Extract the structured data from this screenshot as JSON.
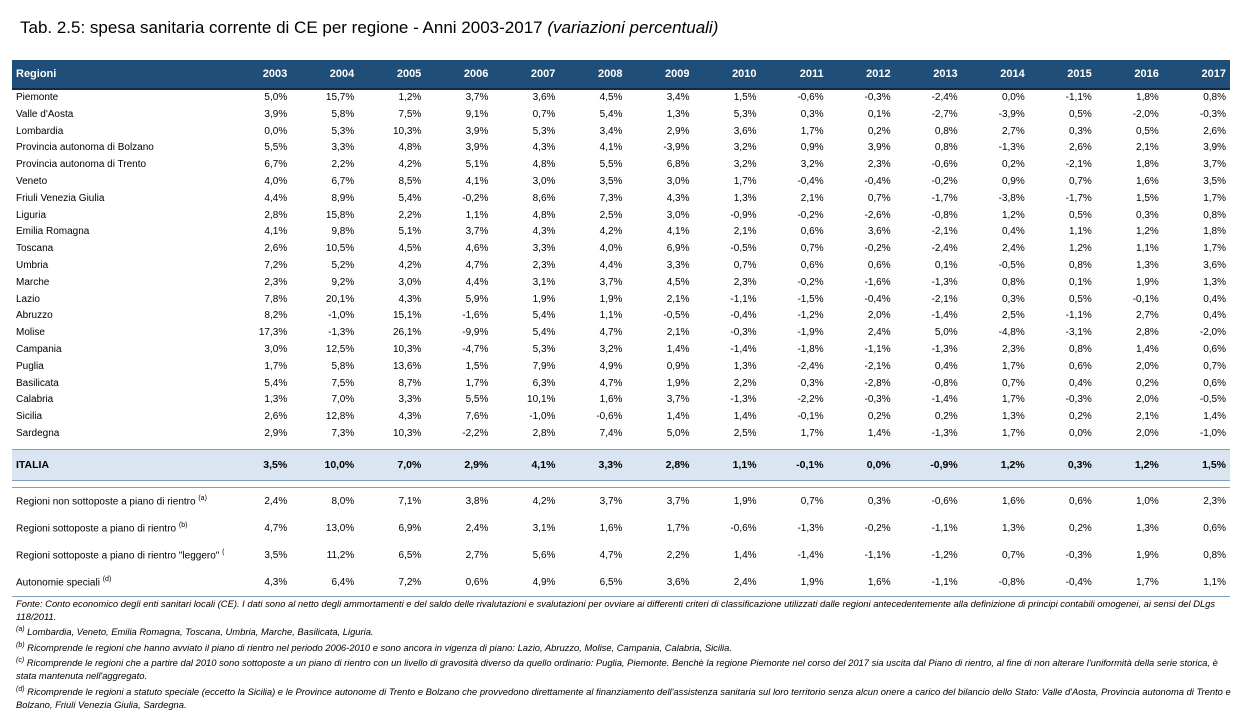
{
  "title": {
    "main": "Tab. 2.5: spesa sanitaria corrente di CE  per regione - Anni 2003-2017",
    "sub": "(variazioni percentuali)"
  },
  "table": {
    "header": [
      "Regioni",
      "2003",
      "2004",
      "2005",
      "2006",
      "2007",
      "2008",
      "2009",
      "2010",
      "2011",
      "2012",
      "2013",
      "2014",
      "2015",
      "2016",
      "2017"
    ],
    "rows": [
      [
        "Piemonte",
        "5,0%",
        "15,7%",
        "1,2%",
        "3,7%",
        "3,6%",
        "4,5%",
        "3,4%",
        "1,5%",
        "-0,6%",
        "-0,3%",
        "-2,4%",
        "0,0%",
        "-1,1%",
        "1,8%",
        "0,8%"
      ],
      [
        "Valle d'Aosta",
        "3,9%",
        "5,8%",
        "7,5%",
        "9,1%",
        "0,7%",
        "5,4%",
        "1,3%",
        "5,3%",
        "0,3%",
        "0,1%",
        "-2,7%",
        "-3,9%",
        "0,5%",
        "-2,0%",
        "-0,3%"
      ],
      [
        "Lombardia",
        "0,0%",
        "5,3%",
        "10,3%",
        "3,9%",
        "5,3%",
        "3,4%",
        "2,9%",
        "3,6%",
        "1,7%",
        "0,2%",
        "0,8%",
        "2,7%",
        "0,3%",
        "0,5%",
        "2,6%"
      ],
      [
        "Provincia autonoma di Bolzano",
        "5,5%",
        "3,3%",
        "4,8%",
        "3,9%",
        "4,3%",
        "4,1%",
        "-3,9%",
        "3,2%",
        "0,9%",
        "3,9%",
        "0,8%",
        "-1,3%",
        "2,6%",
        "2,1%",
        "3,9%"
      ],
      [
        "Provincia autonoma di Trento",
        "6,7%",
        "2,2%",
        "4,2%",
        "5,1%",
        "4,8%",
        "5,5%",
        "6,8%",
        "3,2%",
        "3,2%",
        "2,3%",
        "-0,6%",
        "0,2%",
        "-2,1%",
        "1,8%",
        "3,7%"
      ],
      [
        "Veneto",
        "4,0%",
        "6,7%",
        "8,5%",
        "4,1%",
        "3,0%",
        "3,5%",
        "3,0%",
        "1,7%",
        "-0,4%",
        "-0,4%",
        "-0,2%",
        "0,9%",
        "0,7%",
        "1,6%",
        "3,5%"
      ],
      [
        "Friuli Venezia Giulia",
        "4,4%",
        "8,9%",
        "5,4%",
        "-0,2%",
        "8,6%",
        "7,3%",
        "4,3%",
        "1,3%",
        "2,1%",
        "0,7%",
        "-1,7%",
        "-3,8%",
        "-1,7%",
        "1,5%",
        "1,7%"
      ],
      [
        "Liguria",
        "2,8%",
        "15,8%",
        "2,2%",
        "1,1%",
        "4,8%",
        "2,5%",
        "3,0%",
        "-0,9%",
        "-0,2%",
        "-2,6%",
        "-0,8%",
        "1,2%",
        "0,5%",
        "0,3%",
        "0,8%"
      ],
      [
        "Emilia Romagna",
        "4,1%",
        "9,8%",
        "5,1%",
        "3,7%",
        "4,3%",
        "4,2%",
        "4,1%",
        "2,1%",
        "0,6%",
        "3,6%",
        "-2,1%",
        "0,4%",
        "1,1%",
        "1,2%",
        "1,8%"
      ],
      [
        "Toscana",
        "2,6%",
        "10,5%",
        "4,5%",
        "4,6%",
        "3,3%",
        "4,0%",
        "6,9%",
        "-0,5%",
        "0,7%",
        "-0,2%",
        "-2,4%",
        "2,4%",
        "1,2%",
        "1,1%",
        "1,7%"
      ],
      [
        "Umbria",
        "7,2%",
        "5,2%",
        "4,2%",
        "4,7%",
        "2,3%",
        "4,4%",
        "3,3%",
        "0,7%",
        "0,6%",
        "0,6%",
        "0,1%",
        "-0,5%",
        "0,8%",
        "1,3%",
        "3,6%"
      ],
      [
        "Marche",
        "2,3%",
        "9,2%",
        "3,0%",
        "4,4%",
        "3,1%",
        "3,7%",
        "4,5%",
        "2,3%",
        "-0,2%",
        "-1,6%",
        "-1,3%",
        "0,8%",
        "0,1%",
        "1,9%",
        "1,3%"
      ],
      [
        "Lazio",
        "7,8%",
        "20,1%",
        "4,3%",
        "5,9%",
        "1,9%",
        "1,9%",
        "2,1%",
        "-1,1%",
        "-1,5%",
        "-0,4%",
        "-2,1%",
        "0,3%",
        "0,5%",
        "-0,1%",
        "0,4%"
      ],
      [
        "Abruzzo",
        "8,2%",
        "-1,0%",
        "15,1%",
        "-1,6%",
        "5,4%",
        "1,1%",
        "-0,5%",
        "-0,4%",
        "-1,2%",
        "2,0%",
        "-1,4%",
        "2,5%",
        "-1,1%",
        "2,7%",
        "0,4%"
      ],
      [
        "Molise",
        "17,3%",
        "-1,3%",
        "26,1%",
        "-9,9%",
        "5,4%",
        "4,7%",
        "2,1%",
        "-0,3%",
        "-1,9%",
        "2,4%",
        "5,0%",
        "-4,8%",
        "-3,1%",
        "2,8%",
        "-2,0%"
      ],
      [
        "Campania",
        "3,0%",
        "12,5%",
        "10,3%",
        "-4,7%",
        "5,3%",
        "3,2%",
        "1,4%",
        "-1,4%",
        "-1,8%",
        "-1,1%",
        "-1,3%",
        "2,3%",
        "0,8%",
        "1,4%",
        "0,6%"
      ],
      [
        "Puglia",
        "1,7%",
        "5,8%",
        "13,6%",
        "1,5%",
        "7,9%",
        "4,9%",
        "0,9%",
        "1,3%",
        "-2,4%",
        "-2,1%",
        "0,4%",
        "1,7%",
        "0,6%",
        "2,0%",
        "0,7%"
      ],
      [
        "Basilicata",
        "5,4%",
        "7,5%",
        "8,7%",
        "1,7%",
        "6,3%",
        "4,7%",
        "1,9%",
        "2,2%",
        "0,3%",
        "-2,8%",
        "-0,8%",
        "0,7%",
        "0,4%",
        "0,2%",
        "0,6%"
      ],
      [
        "Calabria",
        "1,3%",
        "7,0%",
        "3,3%",
        "5,5%",
        "10,1%",
        "1,6%",
        "3,7%",
        "-1,3%",
        "-2,2%",
        "-0,3%",
        "-1,4%",
        "1,7%",
        "-0,3%",
        "2,0%",
        "-0,5%"
      ],
      [
        "Sicilia",
        "2,6%",
        "12,8%",
        "4,3%",
        "7,6%",
        "-1,0%",
        "-0,6%",
        "1,4%",
        "1,4%",
        "-0,1%",
        "0,2%",
        "0,2%",
        "1,3%",
        "0,2%",
        "2,1%",
        "1,4%"
      ],
      [
        "Sardegna",
        "2,9%",
        "7,3%",
        "10,3%",
        "-2,2%",
        "2,8%",
        "7,4%",
        "5,0%",
        "2,5%",
        "1,7%",
        "1,4%",
        "-1,3%",
        "1,7%",
        "0,0%",
        "2,0%",
        "-1,0%"
      ]
    ],
    "italia": [
      "ITALIA",
      "3,5%",
      "10,0%",
      "7,0%",
      "2,9%",
      "4,1%",
      "3,3%",
      "2,8%",
      "1,1%",
      "-0,1%",
      "0,0%",
      "-0,9%",
      "1,2%",
      "0,3%",
      "1,2%",
      "1,5%"
    ],
    "groups": [
      {
        "label": "Regioni non sottoposte a piano di rientro ",
        "sup": "(a)",
        "values": [
          "2,4%",
          "8,0%",
          "7,1%",
          "3,8%",
          "4,2%",
          "3,7%",
          "3,7%",
          "1,9%",
          "0,7%",
          "0,3%",
          "-0,6%",
          "1,6%",
          "0,6%",
          "1,0%",
          "2,3%"
        ]
      },
      {
        "label": "Regioni sottoposte a piano di rientro ",
        "sup": "(b)",
        "values": [
          "4,7%",
          "13,0%",
          "6,9%",
          "2,4%",
          "3,1%",
          "1,6%",
          "1,7%",
          "-0,6%",
          "-1,3%",
          "-0,2%",
          "-1,1%",
          "1,3%",
          "0,2%",
          "1,3%",
          "0,6%"
        ]
      },
      {
        "label": "Regioni sottoposte a piano di rientro \"leggero\" ",
        "sup": "(c)",
        "values": [
          "3,5%",
          "11,2%",
          "6,5%",
          "2,7%",
          "5,6%",
          "4,7%",
          "2,2%",
          "1,4%",
          "-1,4%",
          "-1,1%",
          "-1,2%",
          "0,7%",
          "-0,3%",
          "1,9%",
          "0,8%"
        ]
      },
      {
        "label": "Autonomie speciali ",
        "sup": "(d)",
        "values": [
          "4,3%",
          "6,4%",
          "7,2%",
          "0,6%",
          "4,9%",
          "6,5%",
          "3,6%",
          "2,4%",
          "1,9%",
          "1,6%",
          "-1,1%",
          "-0,8%",
          "-0,4%",
          "1,7%",
          "1,1%"
        ]
      }
    ]
  },
  "notes": {
    "fonte": "Fonte: Conto economico degli enti sanitari locali (CE). I dati sono al netto degli ammortamenti e del saldo delle rivalutazioni e svalutazioni per ovviare ai differenti criteri di classificazione utilizzati dalle regioni antecedentemente alla definizione di principi contabili omogenei, ai sensi del DLgs 118/2011.",
    "items": [
      {
        "sup": "(a)",
        "text": " Lombardia, Veneto, Emilia Romagna, Toscana, Umbria, Marche, Basilicata, Liguria."
      },
      {
        "sup": "(b)",
        "text": " Ricomprende le regioni che hanno avviato il piano di rientro nel periodo 2006-2010 e sono ancora in vigenza di piano: Lazio, Abruzzo, Molise, Campania, Calabria, Sicilia."
      },
      {
        "sup": "(c)",
        "text": " Ricomprende le regioni che a partire dal 2010 sono sottoposte a un piano di rientro con un livello di gravosità diverso da quello ordinario: Puglia, Piemonte. Benchè la regione Piemonte nel corso del 2017 sia uscita dal Piano di rientro, al fine di non alterare l'uniformità della serie storica, è stata mantenuta nell'aggregato."
      },
      {
        "sup": "(d)",
        "text": " Ricomprende le regioni a statuto speciale (eccetto la Sicilia) e le Province autonome di Trento e Bolzano che provvedono direttamente al finanziamento dell'assistenza sanitaria sul loro territorio senza alcun onere a carico del bilancio dello Stato: Valle d'Aosta, Provincia autonoma di Trento e Bolzano, Friuli Venezia Giulia, Sardegna."
      }
    ]
  }
}
